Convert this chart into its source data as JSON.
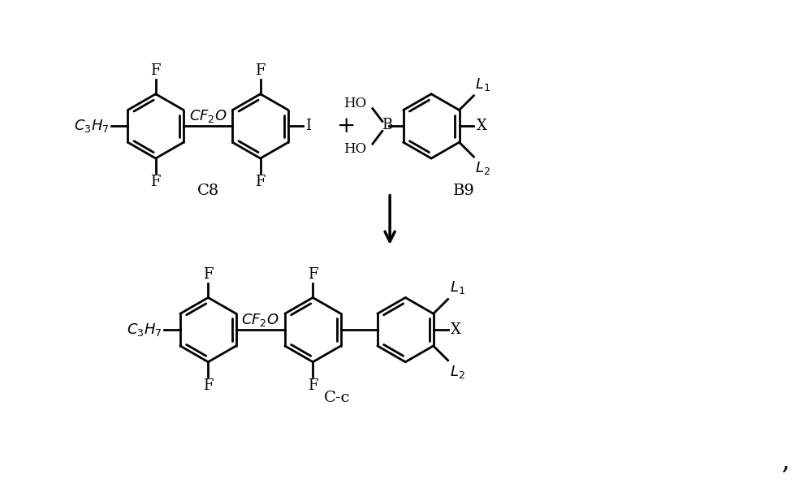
{
  "background_color": "#ffffff",
  "line_color": "#000000",
  "line_width": 2.0,
  "font_size": 13,
  "figsize": [
    10.0,
    6.12
  ],
  "dpi": 100,
  "xlim": [
    0,
    10
  ],
  "ylim": [
    0,
    6.12
  ],
  "label_C8": "C8",
  "label_B9": "B9",
  "label_Cc": "C-c"
}
